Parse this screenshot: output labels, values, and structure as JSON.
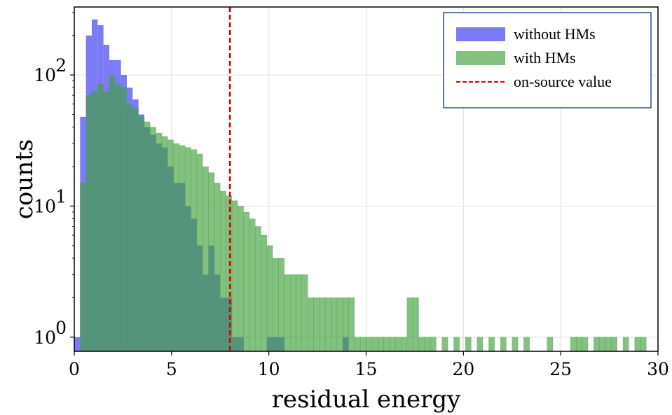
{
  "chart_data": {
    "type": "histogram",
    "xlabel": "residual energy",
    "ylabel": "counts",
    "y_scale": "log",
    "xlim": [
      0,
      30
    ],
    "ylim": [
      0.78,
      330
    ],
    "x_ticks": [
      0,
      5,
      10,
      15,
      20,
      25,
      30
    ],
    "x_tick_labels": [
      "0",
      "5",
      "10",
      "15",
      "20",
      "25",
      "30"
    ],
    "y_ticks": [
      1,
      10,
      100
    ],
    "y_tick_labels": [
      {
        "base": "10",
        "exp": "0"
      },
      {
        "base": "10",
        "exp": "1"
      },
      {
        "base": "10",
        "exp": "2"
      }
    ],
    "grid": true,
    "legend_position": "top-right",
    "bin_width": 0.3,
    "series": [
      {
        "name": "without HMs",
        "color": "#7b7bf8",
        "bins": [
          [
            0.0,
            1
          ],
          [
            0.3,
            48
          ],
          [
            0.6,
            200
          ],
          [
            0.9,
            265
          ],
          [
            1.2,
            240
          ],
          [
            1.5,
            170
          ],
          [
            1.8,
            130
          ],
          [
            2.1,
            130
          ],
          [
            2.4,
            100
          ],
          [
            2.7,
            80
          ],
          [
            3.0,
            65
          ],
          [
            3.3,
            50
          ],
          [
            3.6,
            40
          ],
          [
            3.9,
            35
          ],
          [
            4.2,
            30
          ],
          [
            4.5,
            28
          ],
          [
            4.8,
            20
          ],
          [
            5.1,
            15
          ],
          [
            5.4,
            15
          ],
          [
            5.7,
            10
          ],
          [
            6.0,
            8
          ],
          [
            6.3,
            5
          ],
          [
            6.6,
            3
          ],
          [
            6.9,
            5
          ],
          [
            7.2,
            3
          ],
          [
            7.5,
            2
          ],
          [
            7.8,
            2
          ],
          [
            8.1,
            1
          ],
          [
            8.4,
            1
          ],
          [
            9.9,
            1
          ],
          [
            10.2,
            1
          ],
          [
            10.5,
            1
          ],
          [
            13.8,
            1
          ]
        ]
      },
      {
        "name": "with HMs",
        "color": "#7ec17a",
        "bins": [
          [
            0.3,
            15
          ],
          [
            0.6,
            70
          ],
          [
            0.9,
            75
          ],
          [
            1.2,
            85
          ],
          [
            1.5,
            75
          ],
          [
            1.8,
            100
          ],
          [
            2.1,
            85
          ],
          [
            2.4,
            80
          ],
          [
            2.7,
            60
          ],
          [
            3.0,
            55
          ],
          [
            3.3,
            48
          ],
          [
            3.6,
            44
          ],
          [
            3.9,
            40
          ],
          [
            4.2,
            36
          ],
          [
            4.5,
            34
          ],
          [
            4.8,
            32
          ],
          [
            5.1,
            30
          ],
          [
            5.4,
            29
          ],
          [
            5.7,
            28
          ],
          [
            6.0,
            27
          ],
          [
            6.3,
            25
          ],
          [
            6.6,
            20
          ],
          [
            6.9,
            18
          ],
          [
            7.2,
            15
          ],
          [
            7.5,
            13
          ],
          [
            7.8,
            12
          ],
          [
            8.1,
            11
          ],
          [
            8.4,
            10
          ],
          [
            8.7,
            9
          ],
          [
            9.0,
            8
          ],
          [
            9.3,
            7
          ],
          [
            9.6,
            6
          ],
          [
            9.9,
            5
          ],
          [
            10.2,
            4
          ],
          [
            10.5,
            4
          ],
          [
            10.8,
            3
          ],
          [
            11.1,
            3
          ],
          [
            11.4,
            3
          ],
          [
            11.7,
            3
          ],
          [
            12.0,
            2
          ],
          [
            12.3,
            2
          ],
          [
            12.6,
            2
          ],
          [
            12.9,
            2
          ],
          [
            13.2,
            2
          ],
          [
            13.5,
            2
          ],
          [
            13.8,
            2
          ],
          [
            14.1,
            2
          ],
          [
            14.4,
            1
          ],
          [
            14.7,
            1
          ],
          [
            15.0,
            1
          ],
          [
            15.3,
            1
          ],
          [
            15.6,
            1
          ],
          [
            15.9,
            1
          ],
          [
            16.2,
            1
          ],
          [
            16.5,
            1
          ],
          [
            16.8,
            1
          ],
          [
            17.1,
            2
          ],
          [
            17.4,
            2
          ],
          [
            17.7,
            1
          ],
          [
            18.0,
            1
          ],
          [
            18.3,
            1
          ],
          [
            18.9,
            1
          ],
          [
            19.5,
            1
          ],
          [
            20.1,
            1
          ],
          [
            20.7,
            1
          ],
          [
            21.3,
            1
          ],
          [
            21.9,
            1
          ],
          [
            22.5,
            1
          ],
          [
            23.1,
            1
          ],
          [
            24.3,
            1
          ],
          [
            25.5,
            1
          ],
          [
            25.8,
            1
          ],
          [
            26.1,
            1
          ],
          [
            26.7,
            1
          ],
          [
            27.0,
            1
          ],
          [
            27.3,
            1
          ],
          [
            27.6,
            1
          ],
          [
            28.2,
            1
          ],
          [
            28.8,
            1
          ],
          [
            29.1,
            1
          ]
        ]
      },
      {
        "name": "on-source value",
        "color": "#dd0000",
        "type": "vline",
        "x": 8.0
      }
    ]
  }
}
